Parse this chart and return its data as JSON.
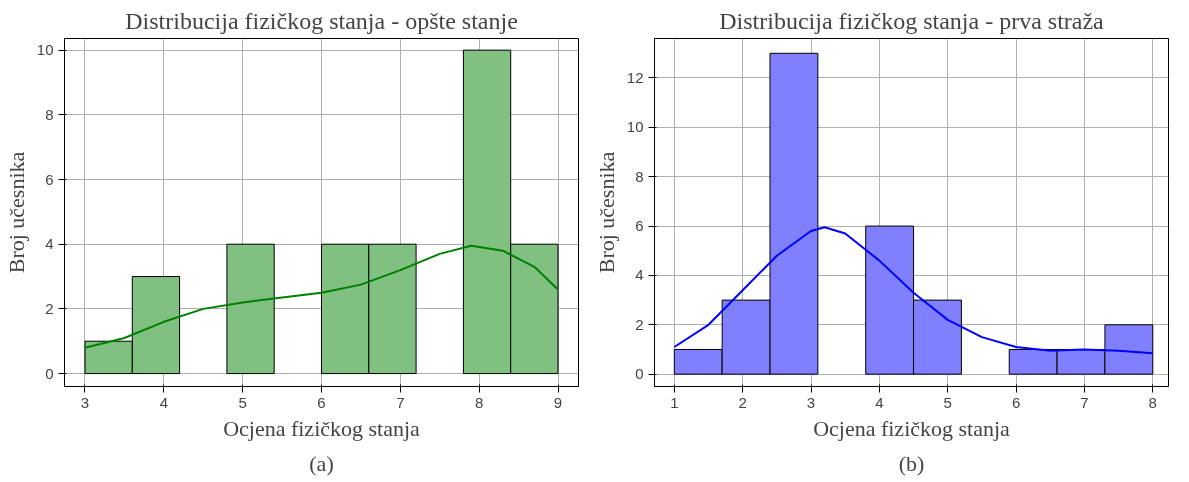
{
  "chart_data": [
    {
      "type": "histogram",
      "title": "Distribucija fizičkog stanja - opšte stanje",
      "xlabel": "Ocjena fizičkog stanja",
      "ylabel": "Broj učesnika",
      "annotations": [
        "(a)"
      ],
      "bins": [
        3,
        3.6,
        4.2,
        4.8,
        5.4,
        6.0,
        6.6,
        7.2,
        7.8,
        8.4,
        9.0
      ],
      "values": [
        1,
        3,
        0,
        4,
        0,
        4,
        4,
        0,
        10,
        4
      ],
      "color": "#80c080",
      "series": [
        {
          "type": "line",
          "color": "#008000",
          "x": [
            3,
            3.5,
            4,
            4.5,
            5,
            5.5,
            6,
            6.5,
            7,
            7.5,
            7.9,
            8.3,
            8.7,
            9
          ],
          "values": [
            0.8,
            1.1,
            1.6,
            2.0,
            2.2,
            2.35,
            2.5,
            2.75,
            3.2,
            3.7,
            3.95,
            3.8,
            3.3,
            2.6
          ]
        }
      ],
      "xlim": [
        2.74,
        9.26
      ],
      "ylim": [
        -0.4,
        10.36
      ],
      "xticks": [
        3,
        4,
        5,
        6,
        7,
        8,
        9
      ],
      "yticks": [
        0,
        2,
        4,
        6,
        8,
        10
      ],
      "grid": true
    },
    {
      "type": "histogram",
      "title": "Distribucija fizičkog stanja - prva straža",
      "xlabel": "Ocjena fizičkog stanja",
      "ylabel": "Broj učesnika",
      "annotations": [
        "(b)"
      ],
      "bins": [
        1,
        1.7,
        2.4,
        3.1,
        3.8,
        4.5,
        5.2,
        5.9,
        6.6,
        7.3,
        8.0
      ],
      "values": [
        1,
        3,
        13,
        0,
        6,
        3,
        0,
        1,
        1,
        2
      ],
      "color": "#8080ff",
      "series": [
        {
          "type": "line",
          "color": "#0000ff",
          "x": [
            1,
            1.5,
            2,
            2.5,
            3,
            3.2,
            3.5,
            4,
            4.5,
            5,
            5.5,
            6,
            6.5,
            7,
            7.5,
            8
          ],
          "values": [
            1.1,
            2.0,
            3.4,
            4.8,
            5.8,
            5.95,
            5.7,
            4.6,
            3.3,
            2.2,
            1.5,
            1.1,
            0.95,
            1.0,
            0.95,
            0.85
          ]
        }
      ],
      "xlim": [
        0.71,
        8.23
      ],
      "ylim": [
        -0.5,
        13.6
      ],
      "xticks": [
        1,
        2,
        3,
        4,
        5,
        6,
        7,
        8
      ],
      "yticks": [
        0,
        2,
        4,
        6,
        8,
        10,
        12
      ],
      "grid": true
    }
  ]
}
